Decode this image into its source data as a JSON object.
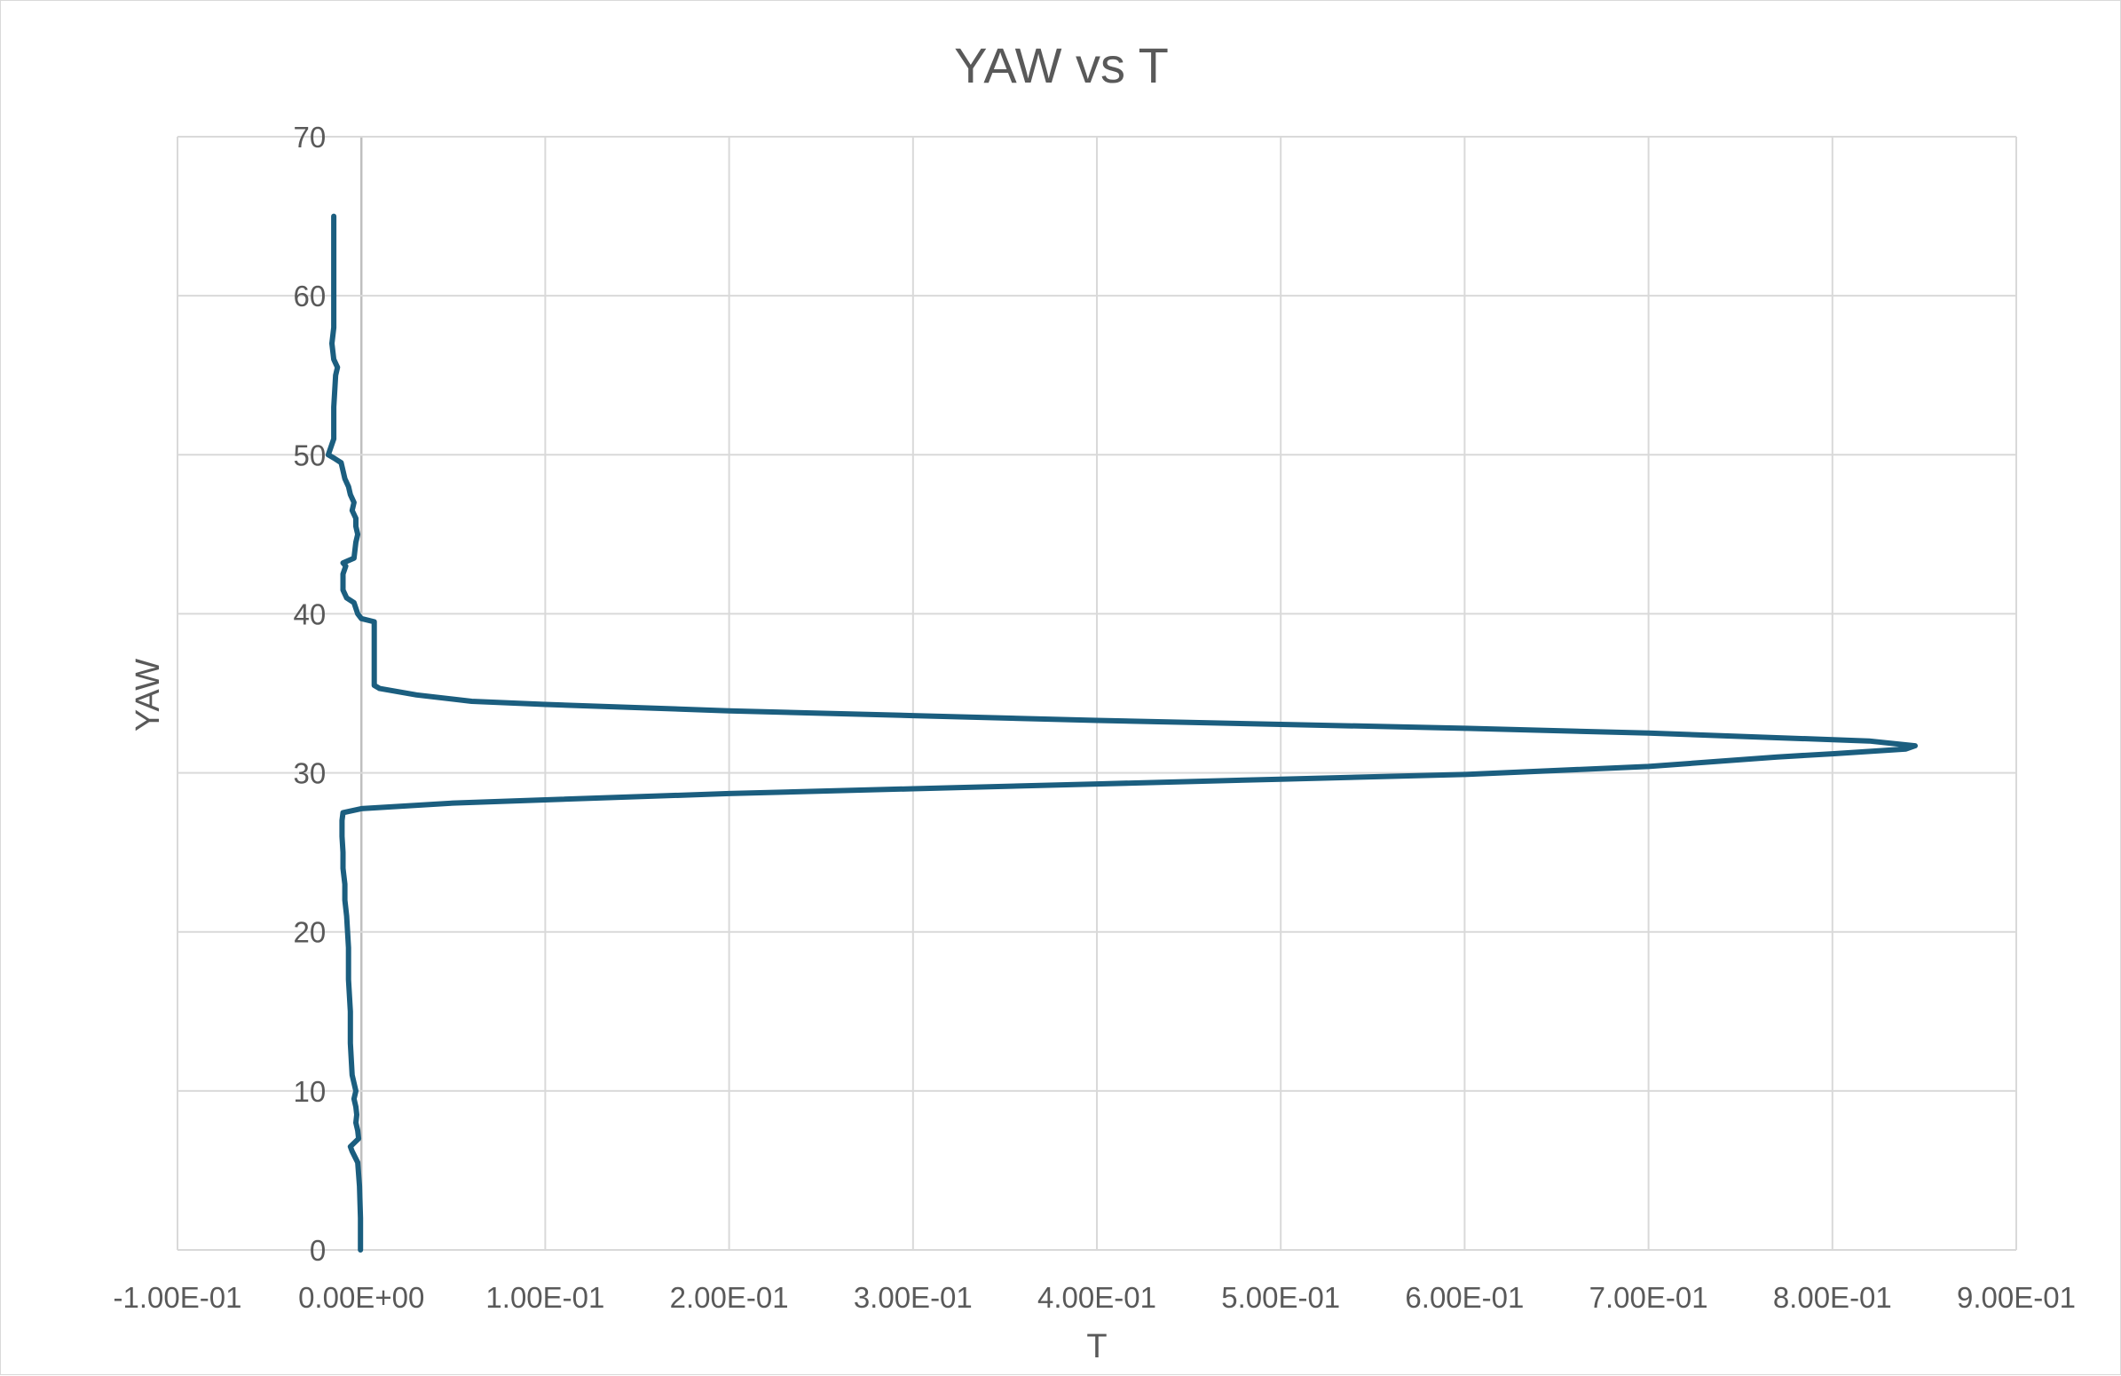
{
  "chart_data": {
    "type": "line",
    "title": "YAW vs T",
    "xlabel": "T",
    "ylabel": "YAW",
    "xlim": [
      -0.1,
      0.9
    ],
    "ylim": [
      0,
      70
    ],
    "x_ticks": [
      -0.1,
      0.0,
      0.1,
      0.2,
      0.3,
      0.4,
      0.5,
      0.6,
      0.7,
      0.8,
      0.9
    ],
    "x_tick_labels": [
      "-1.00E-01",
      "0.00E+00",
      "1.00E-01",
      "2.00E-01",
      "3.00E-01",
      "4.00E-01",
      "5.00E-01",
      "6.00E-01",
      "7.00E-01",
      "8.00E-01",
      "9.00E-01"
    ],
    "y_ticks": [
      0,
      10,
      20,
      30,
      40,
      50,
      60,
      70
    ],
    "y_tick_labels": [
      "0",
      "10",
      "20",
      "30",
      "40",
      "50",
      "60",
      "70"
    ],
    "grid": true,
    "legend": "none",
    "color": "#1b5e7f",
    "series": [
      {
        "points": [
          [
            -0.0005,
            0.0
          ],
          [
            -0.0005,
            2.0
          ],
          [
            -0.001,
            4.0
          ],
          [
            -0.002,
            5.5
          ],
          [
            -0.005,
            6.2
          ],
          [
            -0.006,
            6.5
          ],
          [
            -0.0015,
            7.0
          ],
          [
            -0.002,
            7.5
          ],
          [
            -0.003,
            8.0
          ],
          [
            -0.0025,
            8.5
          ],
          [
            -0.003,
            9.0
          ],
          [
            -0.004,
            9.5
          ],
          [
            -0.003,
            10.0
          ],
          [
            -0.004,
            10.5
          ],
          [
            -0.005,
            11.0
          ],
          [
            -0.006,
            13.0
          ],
          [
            -0.006,
            15.0
          ],
          [
            -0.007,
            17.0
          ],
          [
            -0.007,
            19.0
          ],
          [
            -0.008,
            21.0
          ],
          [
            -0.009,
            22.0
          ],
          [
            -0.009,
            23.0
          ],
          [
            -0.01,
            24.0
          ],
          [
            -0.01,
            25.0
          ],
          [
            -0.0105,
            26.0
          ],
          [
            -0.0105,
            27.0
          ],
          [
            -0.01,
            27.5
          ],
          [
            0.0,
            27.75
          ],
          [
            0.05,
            28.1
          ],
          [
            0.1,
            28.3
          ],
          [
            0.2,
            28.7
          ],
          [
            0.3,
            29.0
          ],
          [
            0.4,
            29.3
          ],
          [
            0.5,
            29.6
          ],
          [
            0.6,
            29.9
          ],
          [
            0.7,
            30.4
          ],
          [
            0.77,
            31.0
          ],
          [
            0.8,
            31.2
          ],
          [
            0.84,
            31.5
          ],
          [
            0.845,
            31.7
          ],
          [
            0.82,
            32.0
          ],
          [
            0.7,
            32.5
          ],
          [
            0.6,
            32.8
          ],
          [
            0.4,
            33.3
          ],
          [
            0.3,
            33.6
          ],
          [
            0.2,
            33.9
          ],
          [
            0.1,
            34.3
          ],
          [
            0.06,
            34.5
          ],
          [
            0.03,
            34.9
          ],
          [
            0.01,
            35.3
          ],
          [
            0.007,
            35.5
          ],
          [
            0.007,
            37.0
          ],
          [
            0.007,
            39.5
          ],
          [
            0.0,
            39.7
          ],
          [
            -0.002,
            40.0
          ],
          [
            -0.004,
            40.7
          ],
          [
            -0.008,
            41.0
          ],
          [
            -0.01,
            41.5
          ],
          [
            -0.01,
            42.5
          ],
          [
            -0.0085,
            43.0
          ],
          [
            -0.01,
            43.2
          ],
          [
            -0.004,
            43.5
          ],
          [
            -0.003,
            44.5
          ],
          [
            -0.002,
            45.0
          ],
          [
            -0.003,
            45.5
          ],
          [
            -0.003,
            46.0
          ],
          [
            -0.005,
            46.5
          ],
          [
            -0.004,
            47.0
          ],
          [
            -0.006,
            47.5
          ],
          [
            -0.007,
            48.0
          ],
          [
            -0.009,
            48.5
          ],
          [
            -0.01,
            49.0
          ],
          [
            -0.011,
            49.5
          ],
          [
            -0.015,
            49.8
          ],
          [
            -0.018,
            50.0
          ],
          [
            -0.015,
            51.0
          ],
          [
            -0.015,
            53.0
          ],
          [
            -0.014,
            55.0
          ],
          [
            -0.013,
            55.5
          ],
          [
            -0.015,
            56.0
          ],
          [
            -0.016,
            57.0
          ],
          [
            -0.015,
            58.0
          ],
          [
            -0.015,
            60.0
          ],
          [
            -0.015,
            62.0
          ],
          [
            -0.015,
            65.0
          ]
        ]
      }
    ]
  }
}
